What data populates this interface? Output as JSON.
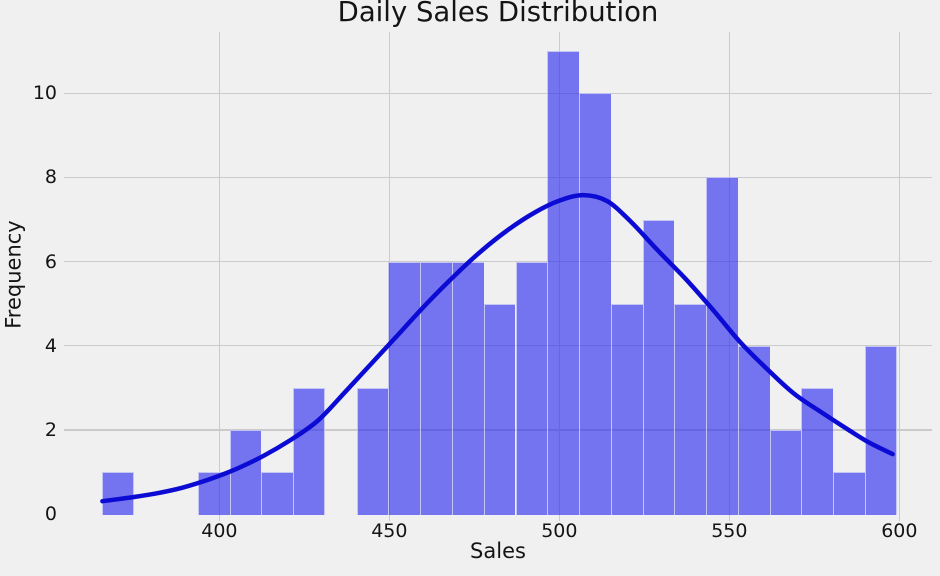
{
  "figure": {
    "background_color": "#F0F0F0",
    "grid_color": "#CBCBCB",
    "text_color": "#141414"
  },
  "chart_data": {
    "type": "histogram-with-kde",
    "title": "Daily Sales Distribution",
    "xlabel": "Sales",
    "ylabel": "Frequency",
    "xlim": [
      354.3,
      609.6
    ],
    "ylim": [
      -0.17,
      11.46
    ],
    "xticks": [
      400,
      450,
      500,
      550,
      600
    ],
    "yticks": [
      0,
      2,
      4,
      6,
      8,
      10
    ],
    "grid": true,
    "legend": "none",
    "bar_color": "#7476F0",
    "bar_edge_color": "#F0F0F0",
    "kde_color": "#0B0BD4",
    "kde_linewidth": 4.5,
    "total_samples": 100,
    "bins": {
      "start": 365.6,
      "width": 9.346,
      "counts": [
        1,
        0,
        0,
        1,
        2,
        1,
        3,
        0,
        3,
        6,
        6,
        6,
        5,
        6,
        11,
        10,
        5,
        7,
        5,
        8,
        4,
        2,
        3,
        1,
        4
      ]
    },
    "kde_points": [
      [
        365.6,
        0.3
      ],
      [
        373,
        0.38
      ],
      [
        381,
        0.48
      ],
      [
        389,
        0.62
      ],
      [
        397,
        0.82
      ],
      [
        405,
        1.07
      ],
      [
        413,
        1.38
      ],
      [
        421,
        1.76
      ],
      [
        429,
        2.22
      ],
      [
        437,
        2.9
      ],
      [
        445,
        3.6
      ],
      [
        453,
        4.3
      ],
      [
        461,
        5.0
      ],
      [
        469,
        5.65
      ],
      [
        477,
        6.25
      ],
      [
        485,
        6.76
      ],
      [
        493,
        7.18
      ],
      [
        500,
        7.45
      ],
      [
        507,
        7.58
      ],
      [
        514,
        7.44
      ],
      [
        521,
        6.95
      ],
      [
        529,
        6.26
      ],
      [
        537,
        5.6
      ],
      [
        545,
        4.87
      ],
      [
        553,
        4.1
      ],
      [
        561,
        3.45
      ],
      [
        569,
        2.86
      ],
      [
        577,
        2.42
      ],
      [
        585,
        2.0
      ],
      [
        591,
        1.7
      ],
      [
        598,
        1.42
      ]
    ]
  }
}
